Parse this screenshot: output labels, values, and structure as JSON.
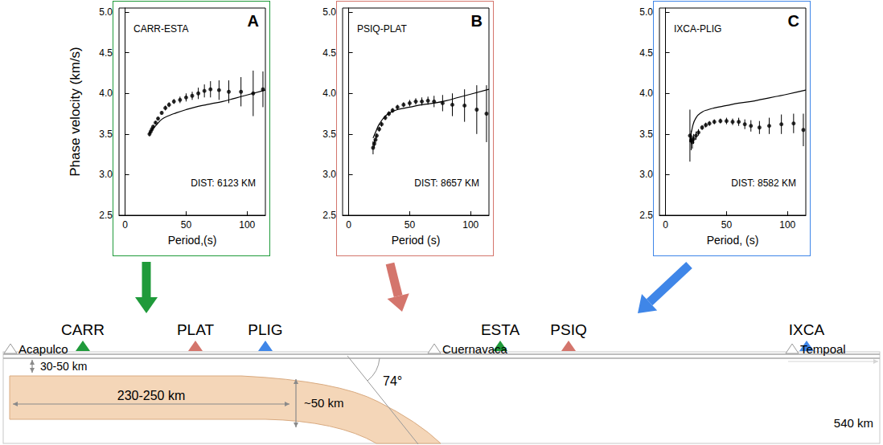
{
  "chart_data": [
    {
      "type": "scatter",
      "title": "CARR-ESTA",
      "letter": "A",
      "annotation": "DIST: 6123 KM",
      "x_label": "Period,(s)",
      "y_label": "Phase velocity (km/s)",
      "xlim": [
        -5,
        115
      ],
      "xticks": [
        0,
        50,
        100
      ],
      "ylim": [
        2.5,
        5.05
      ],
      "yticks": [
        2.5,
        {
          "value": 3,
          "label": "3.0"
        },
        3.5,
        {
          "value": 4,
          "label": "4.0"
        },
        4.5,
        {
          "value": 5,
          "label": "5.0"
        }
      ],
      "grid": false,
      "series": [
        {
          "type": "scatter",
          "marker": "circle",
          "color": "#000000",
          "x": [
            20,
            21,
            22,
            23,
            25,
            27,
            30,
            33,
            36,
            40,
            45,
            50,
            55,
            60,
            65,
            70,
            77,
            85,
            95,
            105,
            113
          ],
          "values": [
            3.5,
            3.53,
            3.56,
            3.59,
            3.64,
            3.69,
            3.76,
            3.82,
            3.86,
            3.9,
            3.92,
            3.95,
            3.97,
            4.0,
            4.03,
            4.05,
            4.04,
            4.02,
            4.02,
            4.0,
            4.05
          ],
          "errors": [
            0.03,
            0.02,
            0.02,
            0.02,
            0.02,
            0.02,
            0.02,
            0.03,
            0.03,
            0.03,
            0.04,
            0.05,
            0.05,
            0.07,
            0.08,
            0.1,
            0.12,
            0.14,
            0.18,
            0.28,
            0.22
          ]
        },
        {
          "type": "line",
          "line_style": "solid",
          "color": "#000000",
          "x": [
            20,
            22,
            25,
            30,
            35,
            40,
            50,
            60,
            70,
            80,
            90,
            100,
            115
          ],
          "values": [
            3.5,
            3.55,
            3.6,
            3.68,
            3.72,
            3.75,
            3.8,
            3.84,
            3.87,
            3.9,
            3.94,
            3.98,
            4.04
          ]
        }
      ]
    },
    {
      "type": "scatter",
      "title": "PSIQ-PLAT",
      "letter": "B",
      "annotation": "DIST: 8657 KM",
      "x_label": "Period (s)",
      "xlim": [
        -5,
        115
      ],
      "xticks": [
        0,
        50,
        100
      ],
      "ylim": [
        2.5,
        5.05
      ],
      "yticks": [
        2.5,
        {
          "value": 3,
          "label": "3.0"
        },
        3.5,
        {
          "value": 4,
          "label": "4.0"
        },
        4.5,
        {
          "value": 5,
          "label": "5.0"
        }
      ],
      "grid": false,
      "series": [
        {
          "type": "scatter",
          "marker": "circle",
          "color": "#000000",
          "x": [
            20,
            21,
            22,
            23,
            25,
            27,
            30,
            33,
            36,
            40,
            45,
            50,
            55,
            60,
            65,
            70,
            77,
            85,
            95,
            105,
            113
          ],
          "values": [
            3.33,
            3.38,
            3.43,
            3.48,
            3.56,
            3.62,
            3.7,
            3.75,
            3.79,
            3.83,
            3.86,
            3.88,
            3.9,
            3.9,
            3.91,
            3.9,
            3.88,
            3.86,
            3.85,
            3.8,
            3.75
          ],
          "errors": [
            0.08,
            0.05,
            0.04,
            0.03,
            0.03,
            0.03,
            0.03,
            0.03,
            0.03,
            0.03,
            0.03,
            0.04,
            0.04,
            0.05,
            0.05,
            0.07,
            0.1,
            0.14,
            0.2,
            0.3,
            0.35
          ]
        },
        {
          "type": "line",
          "line_style": "solid",
          "color": "#000000",
          "x": [
            20,
            22,
            25,
            30,
            35,
            40,
            50,
            60,
            70,
            80,
            90,
            100,
            115
          ],
          "values": [
            3.45,
            3.52,
            3.62,
            3.72,
            3.77,
            3.8,
            3.83,
            3.86,
            3.88,
            3.91,
            3.95,
            3.99,
            4.05
          ]
        }
      ]
    },
    {
      "type": "scatter",
      "title": "IXCA-PLIG",
      "letter": "C",
      "annotation": "DIST: 8582 KM",
      "x_label": "Period, (s)",
      "xlim": [
        -5,
        115
      ],
      "xticks": [
        0,
        50,
        100
      ],
      "ylim": [
        2.5,
        5.05
      ],
      "yticks": [
        2.5,
        {
          "value": 3,
          "label": "3.0"
        },
        3.5,
        {
          "value": 4,
          "label": "4.0"
        },
        4.5,
        {
          "value": 5,
          "label": "5.0"
        }
      ],
      "grid": false,
      "series": [
        {
          "type": "scatter",
          "marker": "circle",
          "color": "#000000",
          "x": [
            20,
            21,
            22,
            23,
            25,
            27,
            30,
            33,
            36,
            40,
            45,
            50,
            55,
            60,
            65,
            70,
            77,
            85,
            95,
            105,
            113
          ],
          "values": [
            3.48,
            3.42,
            3.4,
            3.44,
            3.48,
            3.52,
            3.58,
            3.61,
            3.63,
            3.65,
            3.66,
            3.66,
            3.65,
            3.65,
            3.62,
            3.6,
            3.58,
            3.6,
            3.62,
            3.63,
            3.55
          ],
          "errors": [
            0.32,
            0.12,
            0.08,
            0.06,
            0.05,
            0.04,
            0.03,
            0.03,
            0.03,
            0.03,
            0.03,
            0.04,
            0.04,
            0.05,
            0.06,
            0.07,
            0.08,
            0.1,
            0.12,
            0.12,
            0.2
          ]
        },
        {
          "type": "line",
          "line_style": "solid",
          "color": "#000000",
          "x": [
            20,
            22,
            25,
            30,
            35,
            40,
            50,
            60,
            70,
            80,
            90,
            100,
            115
          ],
          "values": [
            3.4,
            3.58,
            3.7,
            3.77,
            3.8,
            3.82,
            3.85,
            3.88,
            3.9,
            3.93,
            3.96,
            3.99,
            4.04
          ]
        }
      ]
    }
  ],
  "diagram": {
    "arrows": [
      {
        "color": "#1f9a3a"
      },
      {
        "color": "#d4756c"
      },
      {
        "color": "#3f86e8"
      }
    ],
    "stations": [
      {
        "label": "CARR",
        "color": "#1f9a3a"
      },
      {
        "label": "PLAT",
        "color": "#d4756c"
      },
      {
        "label": "PLIG",
        "color": "#3f86e8"
      },
      {
        "label": "ESTA",
        "color": "#1f9a3a"
      },
      {
        "label": "PSIQ",
        "color": "#d4756c"
      },
      {
        "label": "IXCA",
        "color": "#3f86e8"
      }
    ],
    "places": [
      "Acapulco",
      "Cuernavaca",
      "Tempoal"
    ],
    "annotations": {
      "crust": "30-50 km",
      "slab_length": "230-250 km",
      "slab_thickness": "~50 km",
      "dip": "74°",
      "profile_length": "540 km"
    }
  }
}
